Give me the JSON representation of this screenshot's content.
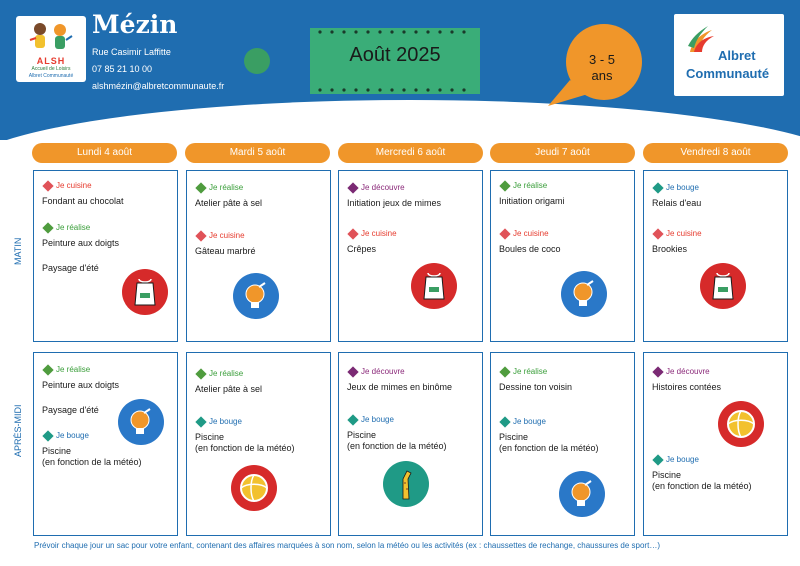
{
  "header": {
    "site_name": "Mézin",
    "address": "Rue Casimir Laffitte",
    "phone": "07 85 21 10 00",
    "email": "alshmézin@albretcommunaute.fr",
    "month": "Août 2025",
    "age_line1": "3 - 5",
    "age_line2": "ans",
    "logo_left": {
      "title": "ALSH",
      "line1": "Accueil de Loisirs",
      "line2": "Albret Communauté"
    },
    "logo_right": {
      "line1": "Albret",
      "line2": "Communauté"
    }
  },
  "sections": {
    "morning": "MATIN",
    "afternoon": "APRÈS-MIDI"
  },
  "tag_labels": {
    "cuisine": "Je cuisine",
    "realise": "Je réalise",
    "decouvre": "Je découvre",
    "bouge": "Je bouge"
  },
  "days": [
    {
      "label": "Lundi 4 août",
      "morning": {
        "activities": [
          {
            "tag": "Je cuisine",
            "title": "Fondant au chocolat"
          },
          {
            "tag": "Je réalise",
            "title": "Peinture aux doigts"
          }
        ],
        "extra": "Paysage d'été",
        "icon": "apron-icon"
      },
      "afternoon": {
        "activities": [
          {
            "tag": "Je réalise",
            "title": "Peinture aux doigts"
          },
          {
            "tag": "Je bouge",
            "title": "Piscine\n(en fonction de la météo)"
          }
        ],
        "extra": "Paysage d'été",
        "icon": "lightbulb-icon"
      }
    },
    {
      "label": "Mardi 5 août",
      "morning": {
        "activities": [
          {
            "tag": "Je réalise",
            "title": "Atelier pâte à sel"
          },
          {
            "tag": "Je cuisine",
            "title": "Gâteau marbré"
          }
        ],
        "icon": "lightbulb-icon"
      },
      "afternoon": {
        "activities": [
          {
            "tag": "Je réalise",
            "title": "Atelier pâte à sel"
          },
          {
            "tag": "Je bouge",
            "title": "Piscine\n(en fonction de la météo)"
          }
        ],
        "icon": "ball-icon"
      }
    },
    {
      "label": "Mercredi 6 août",
      "morning": {
        "activities": [
          {
            "tag": "Je découvre",
            "title": "Initiation jeux de mimes"
          },
          {
            "tag": "Je cuisine",
            "title": "Crêpes"
          }
        ],
        "icon": "apron-icon"
      },
      "afternoon": {
        "activities": [
          {
            "tag": "Je découvre",
            "title": "Jeux de mimes en binôme"
          },
          {
            "tag": "Je bouge",
            "title": "Piscine\n(en fonction de la météo)"
          }
        ],
        "icon": "giraffe-icon"
      }
    },
    {
      "label": "Jeudi 7 août",
      "morning": {
        "activities": [
          {
            "tag": "Je réalise",
            "title": "Initiation origami"
          },
          {
            "tag": "Je cuisine",
            "title": "Boules de coco"
          }
        ],
        "icon": "lightbulb-icon"
      },
      "afternoon": {
        "activities": [
          {
            "tag": "Je réalise",
            "title": "Dessine ton voisin"
          },
          {
            "tag": "Je bouge",
            "title": "Piscine\n(en fonction de la météo)"
          }
        ],
        "icon": "lightbulb-icon"
      }
    },
    {
      "label": "Vendredi 8 août",
      "morning": {
        "activities": [
          {
            "tag": "Je bouge",
            "title": "Relais d'eau"
          },
          {
            "tag": "Je cuisine",
            "title": "Brookies"
          }
        ],
        "icon": "apron-icon"
      },
      "afternoon": {
        "activities": [
          {
            "tag": "Je découvre",
            "title": "Histoires contées"
          },
          {
            "tag": "Je bouge",
            "title": "Piscine\n(en fonction de la météo)"
          }
        ],
        "icon": "ball-icon"
      }
    }
  ],
  "footnote": "Prévoir chaque jour un sac pour votre enfant, contenant des affaires marquées à son nom, selon la météo ou les activités (ex : chaussettes de rechange, chaussures de sport…)",
  "colors": {
    "blue": "#1f6db0",
    "orange": "#f0962a",
    "green": "#3a9e63",
    "month_box": "#3aad78",
    "cuisine": "#e05258",
    "realise": "#4f9c3e",
    "decouvre": "#7b2a74",
    "bouge": "#1f9a86"
  }
}
